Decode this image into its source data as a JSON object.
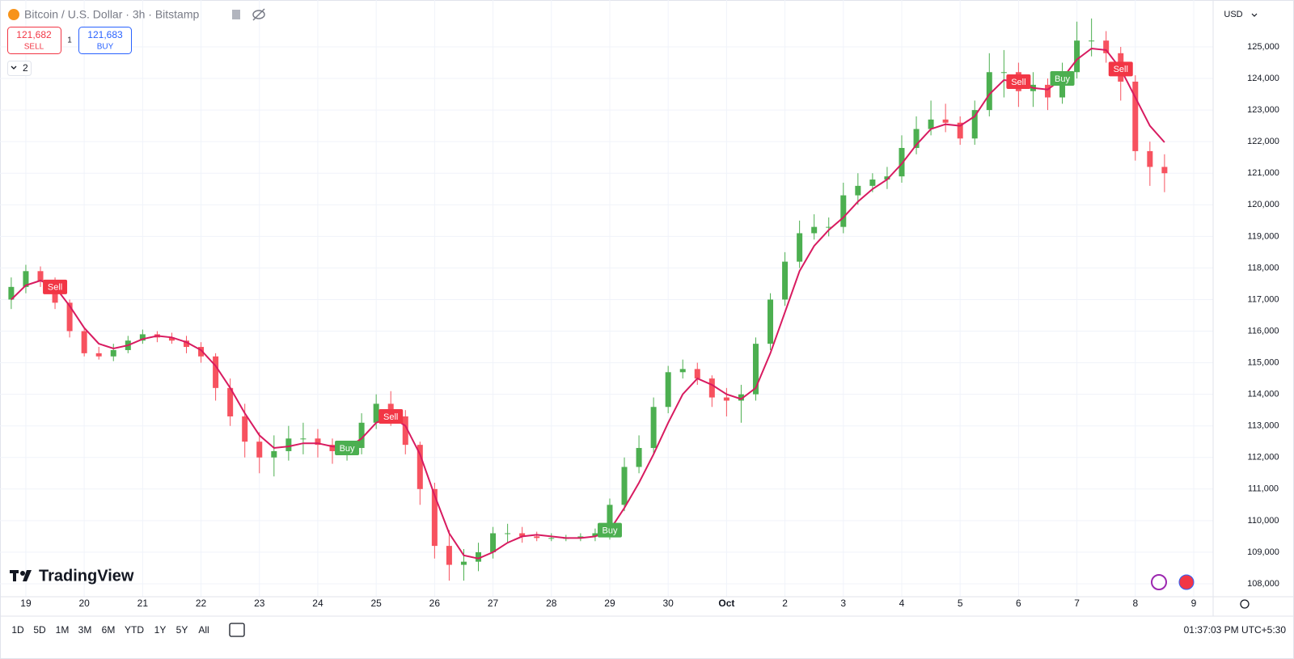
{
  "header": {
    "sell_price": "121,682",
    "sell_label": "SELL",
    "spread": "1",
    "buy_price": "121,683",
    "buy_label": "BUY",
    "indicator_count": "2",
    "currency": "USD"
  },
  "brand": "TradingView",
  "toolbar": {
    "ranges": [
      "1D",
      "5D",
      "1M",
      "3M",
      "6M",
      "YTD",
      "1Y",
      "5Y",
      "All"
    ],
    "clock": "01:37:03 PM UTC+5:30"
  },
  "chart_data": {
    "type": "candlestick",
    "title": "Bitcoin / U.S. Dollar · 3h · Bitstamp",
    "open": [
      117000,
      117400,
      117900,
      117600,
      116900,
      116000,
      115300,
      115200,
      115400,
      115700,
      115900,
      115800,
      115700,
      115500,
      115200,
      114200,
      113300,
      112500,
      112000,
      112200,
      112600,
      112600,
      112400,
      112200,
      112300,
      113100,
      113700,
      113300,
      112400,
      111000,
      109200,
      108600,
      108700,
      109000,
      109600,
      109600,
      109500,
      109450,
      109450,
      109450,
      109500,
      109600,
      110500,
      111700,
      112300,
      113600,
      114700,
      114800,
      114500,
      113900,
      113800,
      114000,
      115600,
      117000,
      118200,
      119100,
      119300,
      119300,
      120300,
      120600,
      120800,
      120900,
      121800,
      122400,
      122700,
      122600,
      122100,
      123000,
      124200,
      124200,
      123600,
      123800,
      123400,
      124200,
      125200,
      125200,
      124800,
      123900,
      121700,
      121200
    ],
    "high": [
      117700,
      118100,
      118050,
      117700,
      117000,
      116100,
      115500,
      115600,
      115850,
      116050,
      116000,
      115950,
      115850,
      115650,
      115300,
      114500,
      113700,
      112800,
      112700,
      113000,
      113100,
      112900,
      112600,
      112500,
      113400,
      114000,
      114100,
      113500,
      112500,
      111200,
      109700,
      109100,
      109300,
      109800,
      109900,
      109800,
      109650,
      109600,
      109550,
      109600,
      109750,
      110700,
      112000,
      112700,
      113900,
      114900,
      115100,
      115000,
      114600,
      114200,
      114300,
      115800,
      117200,
      118500,
      119500,
      119700,
      119600,
      120700,
      121000,
      121000,
      121200,
      122200,
      122800,
      123300,
      123200,
      122800,
      123300,
      124800,
      124900,
      124500,
      124200,
      124000,
      124500,
      125800,
      125900,
      125500,
      125000,
      124100,
      122000,
      121600
    ],
    "low": [
      116700,
      117200,
      117400,
      116700,
      115800,
      115200,
      115100,
      115050,
      115300,
      115600,
      115650,
      115600,
      115300,
      115000,
      113800,
      113000,
      112000,
      111500,
      111400,
      111900,
      112100,
      112000,
      111800,
      111900,
      112100,
      112900,
      113000,
      112100,
      110500,
      108800,
      108100,
      108100,
      108400,
      108800,
      109300,
      109300,
      109350,
      109350,
      109350,
      109350,
      109350,
      109400,
      110300,
      111500,
      112100,
      113400,
      114500,
      114300,
      113600,
      113300,
      113100,
      113800,
      115400,
      116800,
      118000,
      118900,
      119000,
      119100,
      120000,
      120400,
      120500,
      120700,
      121600,
      122200,
      122300,
      121900,
      121900,
      122800,
      123400,
      123100,
      123100,
      123000,
      123200,
      124000,
      124700,
      124500,
      123300,
      121400,
      120600,
      120400
    ],
    "close": [
      117400,
      117900,
      117600,
      116900,
      116000,
      115300,
      115200,
      115400,
      115700,
      115900,
      115800,
      115700,
      115500,
      115200,
      114200,
      113300,
      112500,
      112000,
      112200,
      112600,
      112600,
      112400,
      112200,
      112300,
      113100,
      113700,
      113300,
      112400,
      111000,
      109200,
      108600,
      108700,
      109000,
      109600,
      109600,
      109500,
      109450,
      109450,
      109450,
      109500,
      109600,
      110500,
      111700,
      112300,
      113600,
      114700,
      114800,
      114500,
      113900,
      113800,
      114000,
      115600,
      117000,
      118200,
      119100,
      119300,
      119300,
      120300,
      120600,
      120800,
      120900,
      121800,
      122400,
      122700,
      122600,
      122100,
      123000,
      124200,
      124200,
      123600,
      123800,
      123400,
      124200,
      125200,
      125200,
      124800,
      123900,
      121700,
      121200,
      121000
    ],
    "up_color": "#4caf50",
    "down_color": "#f7525f",
    "ma": {
      "color": "#d81b60",
      "values": [
        117000,
        117450,
        117600,
        117400,
        116800,
        116100,
        115600,
        115450,
        115550,
        115750,
        115850,
        115800,
        115650,
        115400,
        114900,
        114200,
        113400,
        112700,
        112300,
        112350,
        112450,
        112450,
        112350,
        112300,
        112600,
        113100,
        113300,
        113000,
        112100,
        110800,
        109600,
        108900,
        108800,
        109000,
        109300,
        109500,
        109550,
        109500,
        109450,
        109450,
        109500,
        109700,
        110400,
        111200,
        112100,
        113100,
        114000,
        114500,
        114300,
        114000,
        113850,
        114200,
        115300,
        116600,
        117900,
        118700,
        119200,
        119600,
        120100,
        120500,
        120800,
        121300,
        121900,
        122400,
        122550,
        122500,
        122800,
        123500,
        123950,
        123900,
        123700,
        123650,
        124000,
        124600,
        124950,
        124900,
        124300,
        123400,
        122500,
        121980
      ]
    },
    "signals": [
      {
        "label": "Sell",
        "at": 3,
        "color": "#f23645"
      },
      {
        "label": "Buy",
        "at": 23,
        "color": "#4caf50"
      },
      {
        "label": "Sell",
        "at": 26,
        "color": "#f23645"
      },
      {
        "label": "Buy",
        "at": 41,
        "color": "#4caf50"
      },
      {
        "label": "Sell",
        "at": 69,
        "color": "#f23645"
      },
      {
        "label": "Buy",
        "at": 72,
        "color": "#4caf50"
      },
      {
        "label": "Sell",
        "at": 76,
        "color": "#f23645"
      }
    ],
    "xlim": [
      -0.77,
      82.33
    ],
    "xticks": [
      {
        "value": 1,
        "label": "19"
      },
      {
        "value": 5,
        "label": "20"
      },
      {
        "value": 9,
        "label": "21"
      },
      {
        "value": 13,
        "label": "22"
      },
      {
        "value": 17,
        "label": "23"
      },
      {
        "value": 21,
        "label": "24"
      },
      {
        "value": 25,
        "label": "25"
      },
      {
        "value": 29,
        "label": "26"
      },
      {
        "value": 33,
        "label": "27"
      },
      {
        "value": 37,
        "label": "28"
      },
      {
        "value": 41,
        "label": "29"
      },
      {
        "value": 45,
        "label": "30"
      },
      {
        "value": 49,
        "label": "Oct"
      },
      {
        "value": 53,
        "label": "2"
      },
      {
        "value": 57,
        "label": "3"
      },
      {
        "value": 61,
        "label": "4"
      },
      {
        "value": 65,
        "label": "5"
      },
      {
        "value": 69,
        "label": "6"
      },
      {
        "value": 73,
        "label": "7"
      },
      {
        "value": 77,
        "label": "8"
      },
      {
        "value": 81,
        "label": "9"
      }
    ],
    "ylim": [
      107590,
      126485
    ],
    "yticks": [
      {
        "value": 108000,
        "label": "108,000"
      },
      {
        "value": 109000,
        "label": "109,000"
      },
      {
        "value": 110000,
        "label": "110,000"
      },
      {
        "value": 111000,
        "label": "111,000"
      },
      {
        "value": 112000,
        "label": "112,000"
      },
      {
        "value": 113000,
        "label": "113,000"
      },
      {
        "value": 114000,
        "label": "114,000"
      },
      {
        "value": 115000,
        "label": "115,000"
      },
      {
        "value": 116000,
        "label": "116,000"
      },
      {
        "value": 117000,
        "label": "117,000"
      },
      {
        "value": 118000,
        "label": "118,000"
      },
      {
        "value": 119000,
        "label": "119,000"
      },
      {
        "value": 120000,
        "label": "120,000"
      },
      {
        "value": 121000,
        "label": "121,000"
      },
      {
        "value": 122000,
        "label": "122,000"
      },
      {
        "value": 123000,
        "label": "123,000"
      },
      {
        "value": 124000,
        "label": "124,000"
      },
      {
        "value": 125000,
        "label": "125,000"
      }
    ],
    "grid": true
  }
}
